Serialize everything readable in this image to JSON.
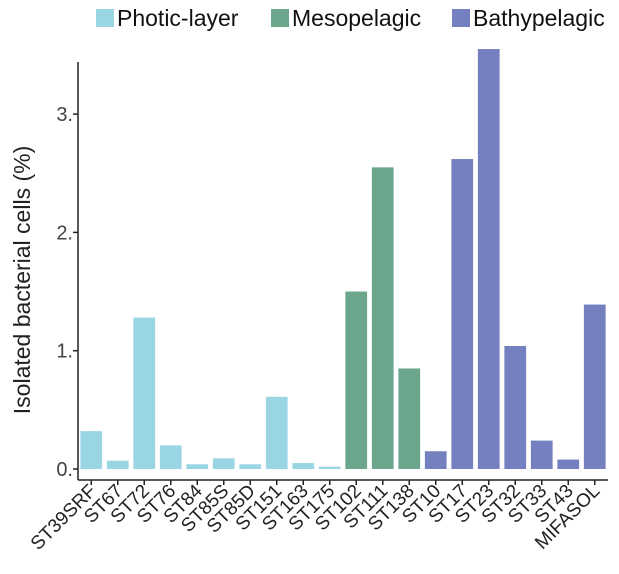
{
  "chart_data": {
    "type": "bar",
    "title": "",
    "xlabel": "",
    "ylabel": "Isolated bacterial cells (%)",
    "ylim": [
      0,
      3.55
    ],
    "yticks": [
      0,
      1,
      2,
      3
    ],
    "ytick_labels": [
      "0.",
      "1.",
      "2.",
      "3."
    ],
    "grid": false,
    "legend_position": "top",
    "groups": [
      {
        "name": "Photic-layer",
        "color": "#9AD5E3"
      },
      {
        "name": "Mesopelagic",
        "color": "#6BA68D"
      },
      {
        "name": "Bathypelagic",
        "color": "#7580C0"
      }
    ],
    "categories": [
      "ST39SRF",
      "ST67",
      "ST72",
      "ST76",
      "ST84",
      "ST85S",
      "ST85D",
      "ST151",
      "ST163",
      "ST175",
      "ST102",
      "ST111",
      "ST138",
      "ST10",
      "ST17",
      "ST23",
      "ST32",
      "ST33",
      "ST43",
      "MIFASOL"
    ],
    "values": [
      0.32,
      0.07,
      1.28,
      0.2,
      0.04,
      0.09,
      0.04,
      0.61,
      0.05,
      0.02,
      1.5,
      2.55,
      0.85,
      0.15,
      2.62,
      3.55,
      1.04,
      0.24,
      0.08,
      1.39
    ],
    "bar_groups": [
      "Photic-layer",
      "Photic-layer",
      "Photic-layer",
      "Photic-layer",
      "Photic-layer",
      "Photic-layer",
      "Photic-layer",
      "Photic-layer",
      "Photic-layer",
      "Photic-layer",
      "Mesopelagic",
      "Mesopelagic",
      "Mesopelagic",
      "Bathypelagic",
      "Bathypelagic",
      "Bathypelagic",
      "Bathypelagic",
      "Bathypelagic",
      "Bathypelagic",
      "Bathypelagic"
    ]
  }
}
